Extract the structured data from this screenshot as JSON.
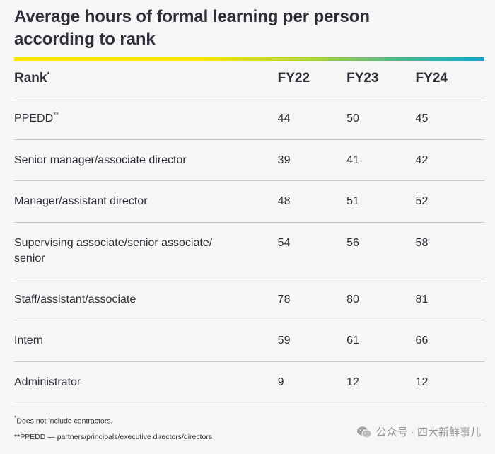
{
  "title": "Average hours of formal learning per person according to rank",
  "colors": {
    "text": "#2e2e38",
    "rule": "#c8c8cc",
    "gradient": [
      "#ffe600",
      "#b9d531",
      "#4db58a",
      "#1aa1d6"
    ]
  },
  "table": {
    "headers": {
      "rank": "Rank",
      "rank_mark": "*",
      "fy22": "FY22",
      "fy23": "FY23",
      "fy24": "FY24"
    },
    "rows": [
      {
        "rank": "PPEDD",
        "mark": "**",
        "fy22": "44",
        "fy23": "50",
        "fy24": "45"
      },
      {
        "rank": "Senior manager/associate director",
        "mark": "",
        "fy22": "39",
        "fy23": "41",
        "fy24": "42"
      },
      {
        "rank": "Manager/assistant director",
        "mark": "",
        "fy22": "48",
        "fy23": "51",
        "fy24": "52"
      },
      {
        "rank_line1": "Supervising associate/senior associate/",
        "rank_line2": "senior",
        "mark": "",
        "fy22": "54",
        "fy23": "56",
        "fy24": "58"
      },
      {
        "rank": "Staff/assistant/associate",
        "mark": "",
        "fy22": "78",
        "fy23": "80",
        "fy24": "81"
      },
      {
        "rank": "Intern",
        "mark": "",
        "fy22": "59",
        "fy23": "61",
        "fy24": "66"
      },
      {
        "rank": "Administrator",
        "mark": "",
        "fy22": "9",
        "fy23": "12",
        "fy24": "12"
      }
    ]
  },
  "footnotes": {
    "note1_mark": "*",
    "note1": "Does not include contractors.",
    "note2_mark": "**",
    "note2": "PPEDD — partners/principals/executive directors/directors"
  },
  "watermark": {
    "text": "公众号 · 四大新鲜事儿",
    "icon": "wechat-icon"
  }
}
